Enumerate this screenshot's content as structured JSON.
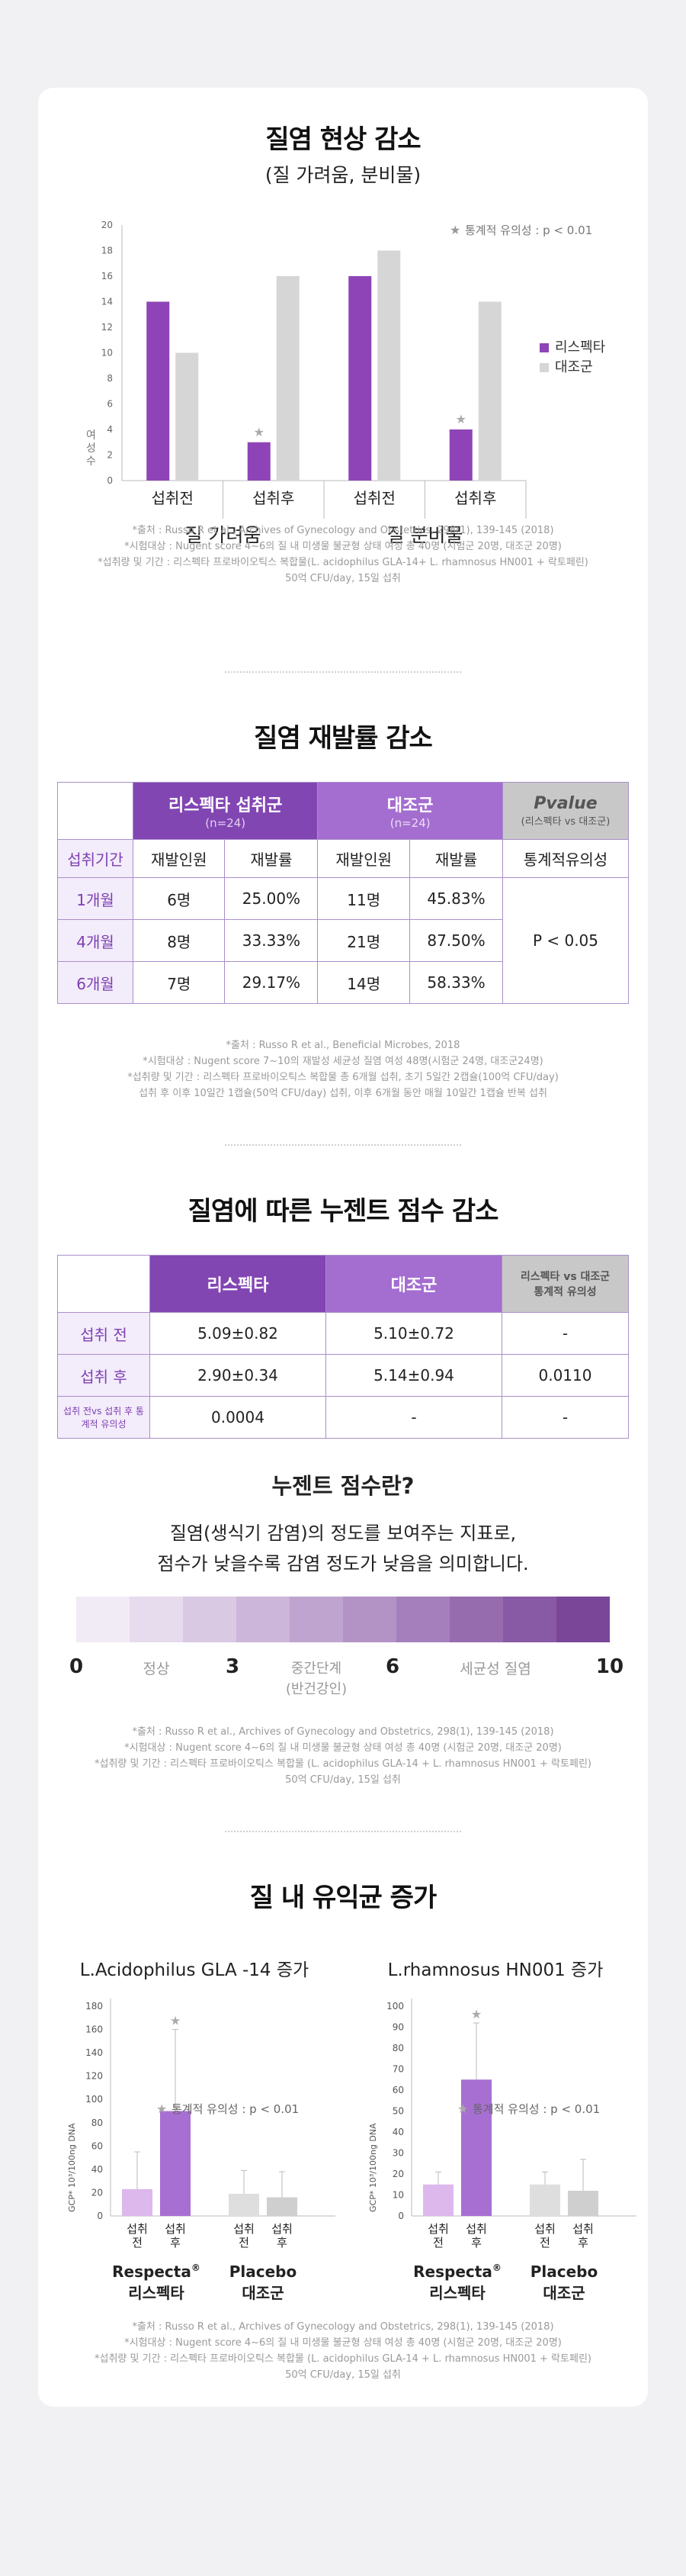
{
  "section1": {
    "title": "질염 현상 감소",
    "subtitle": "(질 가려움, 분비물)",
    "sig_note": "통계적 유의성 : p < 0.01",
    "legend": [
      "리스펙타",
      "대조군"
    ],
    "notes": [
      "*출처 : Russo R et al., Archives of Gynecology and Obstetrics, 298(1), 139-145 (2018)",
      "*시험대상 : Nugent score 4~6의 질 내 미생물 불균형 상태 여성 총 40명 (시험군 20명, 대조군 20명)",
      "*섭취량 및 기간 : 리스펙타 프로바이오틱스 복합물(L. acidophilus GLA-14+ L. rhamnosus HN001 + 락토페린)",
      "50억 CFU/day, 15일 섭취"
    ]
  },
  "chart_data": [
    {
      "type": "bar",
      "title": "",
      "ylabel": "여성 수",
      "ylim": [
        0,
        20
      ],
      "yticks": [
        0,
        2,
        4,
        6,
        8,
        10,
        12,
        14,
        16,
        18,
        20
      ],
      "groups": [
        "질 가려움",
        "질 분비물"
      ],
      "categories": [
        "섭취전",
        "섭취후",
        "섭취전",
        "섭취후"
      ],
      "series": [
        {
          "name": "리스펙타",
          "color": "#8e44b6",
          "values": [
            14,
            3,
            16,
            4
          ]
        },
        {
          "name": "대조군",
          "color": "#d6d6d6",
          "values": [
            10,
            16,
            18,
            14
          ]
        }
      ],
      "significant": [
        false,
        true,
        false,
        true
      ]
    },
    {
      "type": "bar",
      "title": "L.Acidophilus GLA -14 증가",
      "ylabel": "GCP* 10³/100ng DNA",
      "ylim": [
        0,
        180
      ],
      "yticks": [
        0,
        20,
        40,
        60,
        80,
        100,
        120,
        140,
        160,
        180
      ],
      "categories": [
        "섭취 전",
        "섭취 후",
        "섭취 전",
        "섭취 후"
      ],
      "groups": [
        "Respecta® 리스펙타",
        "Placebo 대조군"
      ],
      "values": [
        23,
        90,
        19,
        16
      ],
      "error": [
        32,
        70,
        20,
        22
      ],
      "colors": [
        "#dcb8ec",
        "#a86fd2",
        "#dedede",
        "#cfcfcf"
      ],
      "significant": [
        false,
        true,
        false,
        false
      ]
    },
    {
      "type": "bar",
      "title": "L.rhamnosus HN001 증가",
      "ylabel": "GCP* 10³/100ng DNA",
      "ylim": [
        0,
        100
      ],
      "yticks": [
        0,
        10,
        20,
        30,
        40,
        50,
        60,
        70,
        80,
        90,
        100
      ],
      "categories": [
        "섭취 전",
        "섭취 후",
        "섭취 전",
        "섭취 후"
      ],
      "groups": [
        "Respecta® 리스펙타",
        "Placebo 대조군"
      ],
      "values": [
        15,
        65,
        15,
        12
      ],
      "error": [
        6,
        27,
        6,
        15
      ],
      "colors": [
        "#dcb8ec",
        "#a86fd2",
        "#dedede",
        "#cfcfcf"
      ],
      "significant": [
        false,
        true,
        false,
        false
      ]
    }
  ],
  "section2": {
    "title": "질염 재발률 감소",
    "head_a": "리스펙타 섭취군",
    "head_a_n": "(n=24)",
    "head_b": "대조군",
    "head_b_n": "(n=24)",
    "head_c": "Pvalue",
    "head_c_sub": "(리스펙타 vs 대조군)",
    "sub_period": "섭취기간",
    "sub_cols": [
      "재발인원",
      "재발률",
      "재발인원",
      "재발률",
      "통계적유의성"
    ],
    "rows": [
      {
        "period": "1개월",
        "a_n": "6명",
        "a_r": "25.00%",
        "b_n": "11명",
        "b_r": "45.83%"
      },
      {
        "period": "4개월",
        "a_n": "8명",
        "a_r": "33.33%",
        "b_n": "21명",
        "b_r": "87.50%"
      },
      {
        "period": "6개월",
        "a_n": "7명",
        "a_r": "29.17%",
        "b_n": "14명",
        "b_r": "58.33%"
      }
    ],
    "pvalue": "P < 0.05",
    "notes": [
      "*출처 : Russo R et al., Beneficial Microbes, 2018",
      "*시험대상 : Nugent score 7~10의 재발성 세균성 질염 여성 48명(시험군 24명, 대조군24명)",
      "*섭취량 및 기간 : 리스펙타 프로바이오틱스 복합물 총 6개월 섭취, 초기 5일간 2캡슐(100억 CFU/day)",
      "섭취 후 이후 10일간 1캡슐(50억 CFU/day) 섭취, 이후 6개월 동안 매월 10일간 1캡슐 반복 섭취"
    ]
  },
  "section3": {
    "title": "질염에 따른 누젠트 점수 감소",
    "head_a": "리스펙타",
    "head_b": "대조군",
    "head_c": "리스펙타 vs 대조군 통계적 유의성",
    "rows": [
      {
        "label": "섭취 전",
        "a": "5.09±0.82",
        "b": "5.10±0.72",
        "c": "-"
      },
      {
        "label": "섭취 후",
        "a": "2.90±0.34",
        "b": "5.14±0.94",
        "c": "0.0110"
      },
      {
        "label": "섭취 전vs 섭취 후 통계적 유의성",
        "a": "0.0004",
        "b": "-",
        "c": "-"
      }
    ],
    "nugent_title": "누젠트 점수란?",
    "nugent_desc1": "질염(생식기 감염)의 정도를 보여주는 지표로,",
    "nugent_desc2": "점수가 낮을수록 감염 정도가 낮음을 의미합니다.",
    "scale_colors": [
      "#f1ebf5",
      "#e6dced",
      "#d9c9e3",
      "#ccb6d9",
      "#bfa4cf",
      "#b393c6",
      "#a47fbb",
      "#966caf",
      "#8859a4",
      "#7a4698"
    ],
    "scale_labels": {
      "n0": "0",
      "normal": "정상",
      "n3": "3",
      "mid": "중간단계",
      "mid2": "(반건강인)",
      "n6": "6",
      "bv": "세균성 질염",
      "n10": "10"
    },
    "notes": [
      "*출처 : Russo R et al., Archives of Gynecology and Obstetrics, 298(1), 139-145 (2018)",
      "*시험대상 : Nugent score 4~6의 질 내 미생물 불균형 상태 여성 총 40명 (시험군 20명, 대조군 20명)",
      "*섭취량 및 기간 : 리스펙타 프로바이오틱스 복합물 (L. acidophilus GLA-14 + L. rhamnosus HN001 + 락토페린)",
      "50억 CFU/day, 15일 섭취"
    ]
  },
  "section4": {
    "title": "질 내 유익균 증가",
    "sig_note": "통계적 유의성 : p < 0.01",
    "brand1": "Respecta",
    "brand1_sup": "®",
    "brand1_ko": "리스펙타",
    "brand2": "Placebo",
    "brand2_ko": "대조군",
    "notes": [
      "*출처 : Russo R et al., Archives of Gynecology and Obstetrics, 298(1), 139-145 (2018)",
      "*시험대상 : Nugent score 4~6의 질 내 미생물 불균형 상태 여성 총 40명 (시험군 20명, 대조군 20명)",
      "*섭취량 및 기간 : 리스펙타 프로바이오틱스 복합물 (L. acidophilus GLA-14 + L. rhamnosus HN001 + 락토페린)",
      "50억 CFU/day, 15일 섭취"
    ]
  }
}
